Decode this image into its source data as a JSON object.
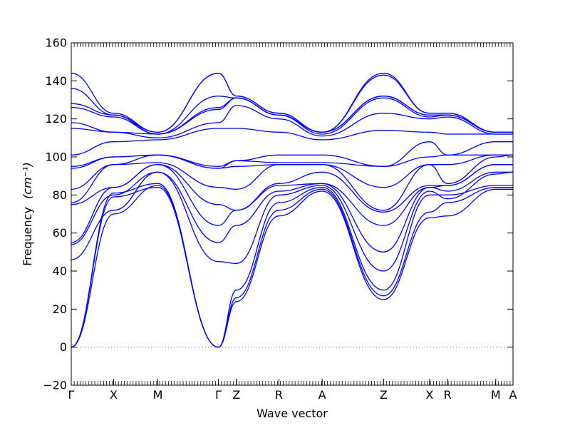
{
  "chart_data": {
    "type": "line",
    "xlabel": "Wave vector",
    "ylabel": "Frequency",
    "ylabel_unit": "(cm⁻¹)",
    "ylim": [
      -20,
      160
    ],
    "yticks": [
      -20,
      0,
      20,
      40,
      60,
      80,
      100,
      120,
      140,
      160
    ],
    "grid": false,
    "legend": "none",
    "series_color": "#0000ff",
    "zero_line_color": "#555555",
    "x_path": [
      {
        "label": "Γ",
        "x": 0.0
      },
      {
        "label": "X",
        "x": 0.096
      },
      {
        "label": "M",
        "x": 0.196
      },
      {
        "label": "Γ",
        "x": 0.333
      },
      {
        "label": "Z",
        "x": 0.374
      },
      {
        "label": "R",
        "x": 0.47
      },
      {
        "label": "A",
        "x": 0.568
      },
      {
        "label": "Z",
        "x": 0.707
      },
      {
        "label": "X",
        "x": 0.811
      },
      {
        "label": "R",
        "x": 0.852
      },
      {
        "label": "M",
        "x": 0.961
      },
      {
        "label": "A",
        "x": 1.0
      }
    ],
    "bands": [
      {
        "x": [
          0,
          0.096,
          0.196,
          0.333,
          0.374,
          0.47,
          0.568,
          0.707,
          0.811,
          0.852,
          0.961,
          1.0
        ],
        "y": [
          0,
          79,
          84,
          0,
          24,
          69,
          82,
          25,
          68,
          69,
          83,
          83
        ]
      },
      {
        "x": [
          0,
          0.096,
          0.196,
          0.333,
          0.374,
          0.47,
          0.568,
          0.707,
          0.811,
          0.852,
          0.961,
          1.0
        ],
        "y": [
          0,
          70,
          85,
          0,
          26,
          72,
          83,
          27,
          71,
          76,
          84,
          84
        ]
      },
      {
        "x": [
          0,
          0.096,
          0.196,
          0.333,
          0.374,
          0.47,
          0.568,
          0.707,
          0.811,
          0.852,
          0.961,
          1.0
        ],
        "y": [
          0,
          81,
          86,
          0,
          30,
          76,
          84,
          30,
          80,
          80,
          85,
          85
        ]
      },
      {
        "x": [
          0,
          0.096,
          0.196,
          0.333,
          0.374,
          0.47,
          0.568,
          0.707,
          0.811,
          0.852,
          0.961,
          1.0
        ],
        "y": [
          46,
          72,
          92,
          45,
          44,
          80,
          85,
          40,
          82,
          78,
          91,
          92
        ]
      },
      {
        "x": [
          0,
          0.096,
          0.196,
          0.333,
          0.374,
          0.47,
          0.568,
          0.707,
          0.811,
          0.852,
          0.961,
          1.0
        ],
        "y": [
          54,
          80,
          92,
          55,
          64,
          82,
          86,
          50,
          84,
          82,
          92,
          92
        ]
      },
      {
        "x": [
          0,
          0.096,
          0.196,
          0.333,
          0.374,
          0.47,
          0.568,
          0.707,
          0.811,
          0.852,
          0.961,
          1.0
        ],
        "y": [
          55,
          84,
          96,
          64,
          72,
          85,
          86,
          64,
          84,
          85,
          96,
          96
        ]
      },
      {
        "x": [
          0,
          0.096,
          0.196,
          0.333,
          0.374,
          0.47,
          0.568,
          0.707,
          0.811,
          0.852,
          0.961,
          1.0
        ],
        "y": [
          75,
          84,
          96,
          75,
          72,
          86,
          92,
          71,
          85,
          85,
          96,
          96
        ]
      },
      {
        "x": [
          0,
          0.096,
          0.196,
          0.333,
          0.374,
          0.47,
          0.568,
          0.707,
          0.811,
          0.852,
          0.961,
          1.0
        ],
        "y": [
          76,
          96,
          97,
          84,
          83,
          96,
          96,
          72,
          96,
          86,
          100,
          101
        ]
      },
      {
        "x": [
          0,
          0.096,
          0.196,
          0.333,
          0.374,
          0.47,
          0.568,
          0.707,
          0.811,
          0.852,
          0.961,
          1.0
        ],
        "y": [
          83,
          96,
          101,
          94,
          95,
          96,
          96,
          84,
          96,
          96,
          101,
          101
        ]
      },
      {
        "x": [
          0,
          0.096,
          0.196,
          0.333,
          0.374,
          0.47,
          0.568,
          0.707,
          0.811,
          0.852,
          0.961,
          1.0
        ],
        "y": [
          94,
          100,
          101,
          94,
          98,
          97,
          97,
          95,
          100,
          101,
          101,
          101
        ]
      },
      {
        "x": [
          0,
          0.096,
          0.196,
          0.333,
          0.374,
          0.47,
          0.568,
          0.707,
          0.811,
          0.852,
          0.961,
          1.0
        ],
        "y": [
          95,
          100,
          101,
          95,
          98,
          101,
          101,
          95,
          108,
          101,
          108,
          108
        ]
      },
      {
        "x": [
          0,
          0.096,
          0.196,
          0.333,
          0.374,
          0.47,
          0.568,
          0.707,
          0.811,
          0.852,
          0.961,
          1.0
        ],
        "y": [
          101,
          108,
          109,
          115,
          115,
          113,
          109,
          114,
          113,
          112,
          112,
          112
        ]
      },
      {
        "x": [
          0,
          0.096,
          0.196,
          0.333,
          0.374,
          0.47,
          0.568,
          0.707,
          0.811,
          0.852,
          0.961,
          1.0
        ],
        "y": [
          115,
          113,
          110,
          118,
          127,
          120,
          111,
          123,
          120,
          121,
          112,
          112
        ]
      },
      {
        "x": [
          0,
          0.096,
          0.196,
          0.333,
          0.374,
          0.47,
          0.568,
          0.707,
          0.811,
          0.852,
          0.961,
          1.0
        ],
        "y": [
          118,
          113,
          112,
          125,
          131,
          122,
          112,
          131,
          121,
          122,
          113,
          113
        ]
      },
      {
        "x": [
          0,
          0.096,
          0.196,
          0.333,
          0.374,
          0.47,
          0.568,
          0.707,
          0.811,
          0.852,
          0.961,
          1.0
        ],
        "y": [
          126,
          121,
          112,
          126,
          131,
          122,
          113,
          132,
          122,
          122,
          113,
          113
        ]
      },
      {
        "x": [
          0,
          0.096,
          0.196,
          0.333,
          0.374,
          0.47,
          0.568,
          0.707,
          0.811,
          0.852,
          0.961,
          1.0
        ],
        "y": [
          128,
          122,
          112,
          132,
          131,
          122,
          113,
          132,
          122,
          122,
          113,
          113
        ]
      },
      {
        "x": [
          0,
          0.096,
          0.196,
          0.333,
          0.374,
          0.47,
          0.568,
          0.707,
          0.811,
          0.852,
          0.961,
          1.0
        ],
        "y": [
          136,
          122,
          113,
          144,
          132,
          123,
          113,
          143,
          123,
          123,
          113,
          113
        ]
      },
      {
        "x": [
          0,
          0.096,
          0.196,
          0.333,
          0.374,
          0.47,
          0.568,
          0.707,
          0.811,
          0.852,
          0.961,
          1.0
        ],
        "y": [
          144,
          123,
          113,
          144,
          132,
          123,
          113,
          144,
          123,
          123,
          113,
          113
        ]
      }
    ]
  }
}
